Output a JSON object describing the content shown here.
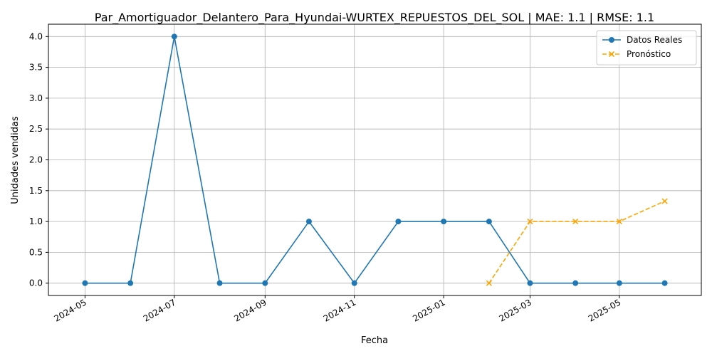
{
  "chart_data": {
    "type": "line",
    "title": "Par_Amortiguador_Delantero_Para_Hyundai-WURTEX_REPUESTOS_DEL_SOL | MAE: 1.1 | RMSE: 1.1",
    "xlabel": "Fecha",
    "ylabel": "Unidades vendidas",
    "ylim": [
      -0.2,
      4.2
    ],
    "xlim": [
      "2024-04-06",
      "2025-06-26"
    ],
    "yticks": [
      "0.0",
      "0.5",
      "1.0",
      "1.5",
      "2.0",
      "2.5",
      "3.0",
      "3.5",
      "4.0"
    ],
    "xticks": [
      "2024-05",
      "2024-07",
      "2024-09",
      "2024-11",
      "2025-01",
      "2025-03",
      "2025-05"
    ],
    "grid": true,
    "legend_position": "top-right",
    "series": [
      {
        "name": "Datos Reales",
        "color": "#1f77b4",
        "style": "solid",
        "marker": "circle",
        "x": [
          "2024-05-01",
          "2024-06-01",
          "2024-07-01",
          "2024-08-01",
          "2024-09-01",
          "2024-10-01",
          "2024-11-01",
          "2024-12-01",
          "2025-01-01",
          "2025-02-01",
          "2025-03-01",
          "2025-04-01",
          "2025-05-01",
          "2025-06-01"
        ],
        "values": [
          0,
          0,
          4,
          0,
          0,
          1,
          0,
          1,
          1,
          1,
          0,
          0,
          0,
          0
        ]
      },
      {
        "name": "Pronóstico",
        "color": "#ffa500",
        "style": "dashed",
        "marker": "x",
        "x": [
          "2025-02-01",
          "2025-03-01",
          "2025-04-01",
          "2025-05-01",
          "2025-06-01"
        ],
        "values": [
          0,
          1,
          1,
          1,
          1.33
        ]
      }
    ]
  }
}
